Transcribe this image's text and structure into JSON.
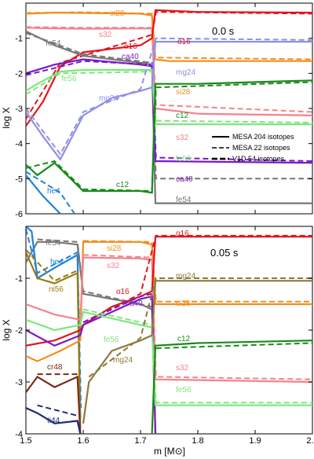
{
  "xlabel": "m [M⊙]",
  "ylabel": "log X",
  "legend": [
    {
      "label": "MESA 204 isotopes",
      "dash": "solid"
    },
    {
      "label": "MESA 22 isotopes",
      "dash": "dashed"
    },
    {
      "label": "V1D 54 isotopes",
      "dash": "thick-dashed"
    }
  ],
  "chart_data": [
    {
      "type": "line",
      "time_label": "0.0 s",
      "xlim": [
        1.5,
        2.0
      ],
      "ylim": [
        -6,
        0
      ],
      "xticks": [
        1.5,
        1.6,
        1.7,
        1.8,
        1.9,
        2.0
      ],
      "yticks": [
        -6,
        -5,
        -4,
        -3,
        -2,
        -1
      ],
      "legend_position": "right-middle",
      "series": [
        {
          "name": "si28",
          "color": "#f28e1c",
          "pts": [
            [
              1.5,
              -0.3
            ],
            [
              1.55,
              -0.27
            ],
            [
              1.6,
              -0.28
            ],
            [
              1.7,
              -0.3
            ],
            [
              1.72,
              -0.35
            ],
            [
              1.725,
              -1.6
            ],
            [
              1.75,
              -1.65
            ],
            [
              2.0,
              -1.65
            ]
          ],
          "dpts": [
            [
              1.5,
              -0.28
            ],
            [
              1.6,
              -0.26
            ],
            [
              1.72,
              -0.3
            ],
            [
              1.726,
              -1.55
            ],
            [
              2.0,
              -1.6
            ]
          ]
        },
        {
          "name": "s32",
          "color": "#f4828c",
          "pts": [
            [
              1.5,
              -0.7
            ],
            [
              1.55,
              -0.72
            ],
            [
              1.6,
              -0.73
            ],
            [
              1.72,
              -0.72
            ],
            [
              1.726,
              -3.0
            ],
            [
              1.8,
              -3.15
            ],
            [
              2.0,
              -3.2
            ]
          ],
          "dpts": [
            [
              1.5,
              -0.68
            ],
            [
              1.6,
              -0.7
            ],
            [
              1.72,
              -0.7
            ],
            [
              1.727,
              -2.9
            ],
            [
              2.0,
              -3.1
            ]
          ]
        },
        {
          "name": "o16",
          "color": "#e3151c",
          "pts": [
            [
              1.5,
              -3.5
            ],
            [
              1.53,
              -2.8
            ],
            [
              1.56,
              -1.8
            ],
            [
              1.6,
              -1.4
            ],
            [
              1.65,
              -1.3
            ],
            [
              1.7,
              -1.2
            ],
            [
              1.72,
              -1.0
            ],
            [
              1.726,
              -0.2
            ],
            [
              1.8,
              -0.25
            ],
            [
              2.0,
              -0.27
            ]
          ],
          "dpts": [
            [
              1.5,
              -3.3
            ],
            [
              1.56,
              -1.7
            ],
            [
              1.65,
              -1.25
            ],
            [
              1.72,
              -0.9
            ],
            [
              1.727,
              -0.25
            ],
            [
              2.0,
              -0.3
            ]
          ]
        },
        {
          "name": "fe54",
          "color": "#777777",
          "pts": [
            [
              1.5,
              -0.8
            ],
            [
              1.55,
              -1.2
            ],
            [
              1.6,
              -1.5
            ],
            [
              1.7,
              -1.7
            ],
            [
              1.72,
              -1.75
            ],
            [
              1.726,
              -5.7
            ],
            [
              2.0,
              -5.7
            ]
          ],
          "dpts": [
            [
              1.5,
              -0.85
            ],
            [
              1.6,
              -1.45
            ],
            [
              1.72,
              -1.7
            ],
            [
              1.727,
              -5.0
            ],
            [
              2.0,
              -5.0
            ]
          ]
        },
        {
          "name": "ca40",
          "color": "#7a19c8",
          "pts": [
            [
              1.5,
              -2.0
            ],
            [
              1.55,
              -1.75
            ],
            [
              1.6,
              -1.6
            ],
            [
              1.7,
              -1.75
            ],
            [
              1.72,
              -1.8
            ],
            [
              1.726,
              -4.5
            ],
            [
              2.0,
              -4.55
            ]
          ],
          "dpts": [
            [
              1.5,
              -2.05
            ],
            [
              1.6,
              -1.65
            ],
            [
              1.72,
              -1.75
            ],
            [
              1.727,
              -4.4
            ],
            [
              2.0,
              -4.5
            ]
          ]
        },
        {
          "name": "fe56",
          "color": "#7ee57e",
          "pts": [
            [
              1.5,
              -2.5
            ],
            [
              1.52,
              -2.3
            ],
            [
              1.56,
              -1.95
            ],
            [
              1.6,
              -1.9
            ],
            [
              1.72,
              -1.9
            ],
            [
              1.726,
              -3.45
            ],
            [
              2.0,
              -3.45
            ]
          ],
          "dpts": [
            [
              1.5,
              -2.6
            ],
            [
              1.56,
              -2.0
            ],
            [
              1.72,
              -1.95
            ],
            [
              1.727,
              -3.35
            ],
            [
              2.0,
              -3.4
            ]
          ]
        },
        {
          "name": "mg24",
          "color": "#8f8fe8",
          "pts": [
            [
              1.5,
              -3.1
            ],
            [
              1.53,
              -3.8
            ],
            [
              1.56,
              -4.45
            ],
            [
              1.6,
              -3.2
            ],
            [
              1.65,
              -2.7
            ],
            [
              1.7,
              -2.5
            ],
            [
              1.72,
              -2.4
            ],
            [
              1.726,
              -1.1
            ],
            [
              2.0,
              -1.1
            ]
          ],
          "dpts": [
            [
              1.5,
              -3.0
            ],
            [
              1.56,
              -4.3
            ],
            [
              1.6,
              -3.1
            ],
            [
              1.7,
              -2.45
            ],
            [
              1.727,
              -1.0
            ],
            [
              2.0,
              -1.05
            ]
          ]
        },
        {
          "name": "c12",
          "color": "#1a8a1a",
          "pts": [
            [
              1.5,
              -4.6
            ],
            [
              1.52,
              -4.9
            ],
            [
              1.55,
              -4.55
            ],
            [
              1.6,
              -5.35
            ],
            [
              1.7,
              -5.35
            ],
            [
              1.72,
              -5.4
            ],
            [
              1.726,
              -2.3
            ],
            [
              1.8,
              -2.3
            ],
            [
              2.0,
              -2.2
            ]
          ],
          "dpts": [
            [
              1.5,
              -4.7
            ],
            [
              1.55,
              -4.5
            ],
            [
              1.6,
              -5.3
            ],
            [
              1.72,
              -5.35
            ],
            [
              1.727,
              -2.4
            ],
            [
              2.0,
              -2.25
            ]
          ]
        },
        {
          "name": "he4",
          "color": "#1f83d6",
          "pts": [
            [
              1.5,
              -4.9
            ],
            [
              1.53,
              -5.5
            ],
            [
              1.56,
              -6.0
            ]
          ],
          "dpts": [
            [
              1.5,
              -4.8
            ],
            [
              1.56,
              -5.4
            ],
            [
              1.585,
              -6.0
            ]
          ]
        }
      ]
    },
    {
      "type": "line",
      "time_label": "0.05 s",
      "xlim": [
        1.5,
        2.0
      ],
      "ylim": [
        -4,
        0
      ],
      "xticks": [
        1.5,
        1.6,
        1.7,
        1.8,
        1.9,
        2.0
      ],
      "yticks": [
        -4,
        -3,
        -2,
        -1
      ],
      "series": [
        {
          "name": "fe54",
          "color": "#777777",
          "pts": [
            [
              1.5,
              -0.7
            ],
            [
              1.52,
              -0.3
            ],
            [
              1.55,
              -0.3
            ],
            [
              1.59,
              -0.35
            ],
            [
              1.6,
              -1.3
            ],
            [
              1.7,
              -1.5
            ],
            [
              1.72,
              -1.6
            ],
            [
              1.726,
              -4.0
            ]
          ],
          "dpts": [
            [
              1.52,
              -0.25
            ],
            [
              1.59,
              -0.3
            ],
            [
              1.6,
              -1.25
            ],
            [
              1.72,
              -1.55
            ]
          ]
        },
        {
          "name": "he4",
          "color": "#1f83d6",
          "pts": [
            [
              1.5,
              0.0
            ],
            [
              1.51,
              -0.1
            ],
            [
              1.52,
              -1.0
            ],
            [
              1.55,
              -0.8
            ],
            [
              1.59,
              -0.55
            ],
            [
              1.595,
              -3.7
            ]
          ],
          "dpts": [
            [
              1.5,
              -0.05
            ],
            [
              1.52,
              -0.9
            ],
            [
              1.59,
              -0.5
            ],
            [
              1.596,
              -3.5
            ]
          ]
        },
        {
          "name": "ni56",
          "color": "#9a7b12",
          "pts": [
            [
              1.5,
              -0.5
            ],
            [
              1.52,
              -1.0
            ],
            [
              1.55,
              -1.1
            ],
            [
              1.59,
              -0.9
            ],
            [
              1.595,
              -3.9
            ]
          ],
          "dpts": [
            [
              1.5,
              -0.45
            ],
            [
              1.55,
              -1.05
            ],
            [
              1.59,
              -0.85
            ]
          ]
        },
        {
          "name": "si28",
          "color": "#f28e1c",
          "pts": [
            [
              1.5,
              -2.5
            ],
            [
              1.52,
              -2.6
            ],
            [
              1.56,
              -2.4
            ],
            [
              1.595,
              -2.2
            ],
            [
              1.6,
              -0.3
            ],
            [
              1.7,
              -0.3
            ],
            [
              1.72,
              -0.35
            ],
            [
              1.726,
              -1.5
            ],
            [
              2.0,
              -1.5
            ]
          ],
          "dpts": [
            [
              1.6,
              -0.28
            ],
            [
              1.72,
              -0.3
            ],
            [
              1.727,
              -1.45
            ],
            [
              2.0,
              -1.45
            ]
          ]
        },
        {
          "name": "s32",
          "color": "#f4828c",
          "pts": [
            [
              1.5,
              -1.5
            ],
            [
              1.55,
              -1.7
            ],
            [
              1.595,
              -1.8
            ],
            [
              1.6,
              -0.6
            ],
            [
              1.7,
              -0.62
            ],
            [
              1.72,
              -0.65
            ],
            [
              1.726,
              -2.95
            ],
            [
              2.0,
              -3.0
            ]
          ],
          "dpts": [
            [
              1.6,
              -0.55
            ],
            [
              1.72,
              -0.6
            ],
            [
              1.727,
              -2.9
            ],
            [
              2.0,
              -2.95
            ]
          ]
        },
        {
          "name": "o16",
          "color": "#e3151c",
          "pts": [
            [
              1.5,
              -2.3
            ],
            [
              1.55,
              -2.2
            ],
            [
              1.595,
              -2.0
            ],
            [
              1.6,
              -1.9
            ],
            [
              1.65,
              -1.55
            ],
            [
              1.7,
              -1.35
            ],
            [
              1.72,
              -1.25
            ],
            [
              1.726,
              -0.2
            ],
            [
              2.0,
              -0.2
            ]
          ],
          "dpts": [
            [
              1.6,
              -1.85
            ],
            [
              1.7,
              -1.3
            ],
            [
              1.727,
              -0.18
            ],
            [
              2.0,
              -0.18
            ]
          ]
        },
        {
          "name": "ca40",
          "color": "#7a19c8",
          "pts": [
            [
              1.5,
              -2.0
            ],
            [
              1.55,
              -2.3
            ],
            [
              1.595,
              -2.1
            ],
            [
              1.6,
              -1.9
            ],
            [
              1.7,
              -1.4
            ],
            [
              1.72,
              -1.35
            ],
            [
              1.726,
              -4.0
            ]
          ],
          "dpts": [
            [
              1.6,
              -1.85
            ],
            [
              1.7,
              -1.35
            ],
            [
              1.72,
              -1.3
            ]
          ]
        },
        {
          "name": "fe56",
          "color": "#7ee57e",
          "pts": [
            [
              1.5,
              -1.8
            ],
            [
              1.55,
              -2.0
            ],
            [
              1.595,
              -1.9
            ],
            [
              1.6,
              -1.65
            ],
            [
              1.7,
              -1.9
            ],
            [
              1.72,
              -1.95
            ],
            [
              1.726,
              -3.45
            ],
            [
              2.0,
              -3.45
            ]
          ],
          "dpts": [
            [
              1.6,
              -1.6
            ],
            [
              1.72,
              -1.9
            ],
            [
              1.727,
              -3.4
            ],
            [
              2.0,
              -3.4
            ]
          ]
        },
        {
          "name": "mg24",
          "color": "#8a7a3a",
          "pts": [
            [
              1.6,
              -3.8
            ],
            [
              1.61,
              -3.0
            ],
            [
              1.65,
              -2.4
            ],
            [
              1.7,
              -2.2
            ],
            [
              1.72,
              -2.1
            ],
            [
              1.726,
              -1.05
            ],
            [
              2.0,
              -1.05
            ]
          ],
          "dpts": [
            [
              1.61,
              -2.9
            ],
            [
              1.7,
              -2.15
            ],
            [
              1.727,
              -1.0
            ],
            [
              2.0,
              -1.0
            ]
          ]
        },
        {
          "name": "c12",
          "color": "#1a8a1a",
          "pts": [
            [
              1.72,
              -4.0
            ],
            [
              1.726,
              -2.3
            ],
            [
              1.8,
              -2.25
            ],
            [
              2.0,
              -2.2
            ]
          ],
          "dpts": [
            [
              1.727,
              -2.35
            ],
            [
              2.0,
              -2.25
            ]
          ]
        },
        {
          "name": "cr48",
          "color": "#7a2a1a",
          "pts": [
            [
              1.5,
              -3.2
            ],
            [
              1.52,
              -2.9
            ],
            [
              1.55,
              -3.1
            ],
            [
              1.59,
              -2.9
            ],
            [
              1.595,
              -4.0
            ]
          ],
          "dpts": [
            [
              1.52,
              -2.85
            ],
            [
              1.59,
              -2.85
            ]
          ]
        },
        {
          "name": "ti44",
          "color": "#1a2a7a",
          "pts": [
            [
              1.5,
              -3.5
            ],
            [
              1.52,
              -3.6
            ],
            [
              1.55,
              -3.8
            ],
            [
              1.59,
              -3.75
            ],
            [
              1.595,
              -4.0
            ]
          ],
          "dpts": [
            [
              1.52,
              -3.45
            ],
            [
              1.59,
              -3.65
            ]
          ]
        }
      ]
    }
  ]
}
